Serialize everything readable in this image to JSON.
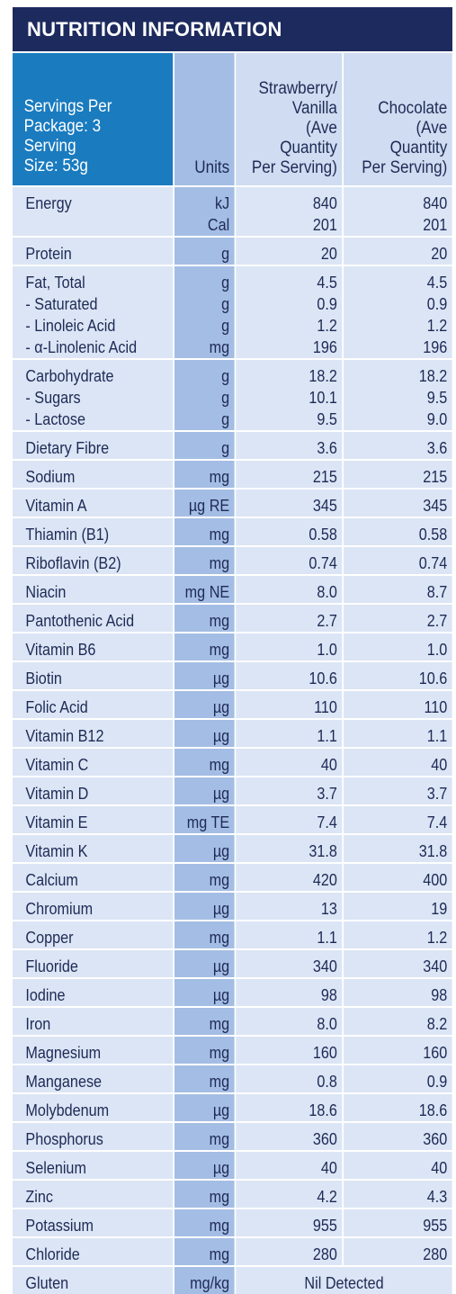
{
  "title": "NUTRITION INFORMATION",
  "header": {
    "serving_lines": [
      "Servings Per",
      "Package: 3",
      "Serving",
      "Size: 53g"
    ],
    "units_label": "Units",
    "col1_lines": [
      "Strawberry/",
      "Vanilla",
      "(Ave",
      "Quantity",
      "Per Serving)"
    ],
    "col2_lines": [
      "Chocolate",
      "(Ave",
      "Quantity",
      "Per Serving)"
    ]
  },
  "rows": [
    {
      "names": [
        "Energy"
      ],
      "units": [
        "kJ",
        "Cal"
      ],
      "v1": [
        "840",
        "201"
      ],
      "v2": [
        "840",
        "201"
      ],
      "valign": "top"
    },
    {
      "names": [
        "Protein"
      ],
      "units": [
        "g"
      ],
      "v1": [
        "20"
      ],
      "v2": [
        "20"
      ]
    },
    {
      "names": [
        "Fat, Total",
        "- Saturated",
        "- Linoleic Acid",
        "- α-Linolenic Acid"
      ],
      "units": [
        "g",
        "g",
        "g",
        "mg"
      ],
      "v1": [
        "4.5",
        "0.9",
        "1.2",
        "196"
      ],
      "v2": [
        "4.5",
        "0.9",
        "1.2",
        "196"
      ]
    },
    {
      "names": [
        "Carbohydrate",
        "- Sugars",
        "- Lactose"
      ],
      "units": [
        "g",
        "g",
        "g"
      ],
      "v1": [
        "18.2",
        "10.1",
        "9.5"
      ],
      "v2": [
        "18.2",
        "9.5",
        "9.0"
      ]
    },
    {
      "names": [
        "Dietary Fibre"
      ],
      "units": [
        "g"
      ],
      "v1": [
        "3.6"
      ],
      "v2": [
        "3.6"
      ]
    },
    {
      "names": [
        "Sodium"
      ],
      "units": [
        "mg"
      ],
      "v1": [
        "215"
      ],
      "v2": [
        "215"
      ]
    },
    {
      "names": [
        "Vitamin A"
      ],
      "units": [
        "µg RE"
      ],
      "v1": [
        "345"
      ],
      "v2": [
        "345"
      ]
    },
    {
      "names": [
        "Thiamin (B1)"
      ],
      "units": [
        "mg"
      ],
      "v1": [
        "0.58"
      ],
      "v2": [
        "0.58"
      ]
    },
    {
      "names": [
        "Riboflavin (B2)"
      ],
      "units": [
        "mg"
      ],
      "v1": [
        "0.74"
      ],
      "v2": [
        "0.74"
      ]
    },
    {
      "names": [
        "Niacin"
      ],
      "units": [
        "mg NE"
      ],
      "v1": [
        "8.0"
      ],
      "v2": [
        "8.7"
      ]
    },
    {
      "names": [
        "Pantothenic Acid"
      ],
      "units": [
        "mg"
      ],
      "v1": [
        "2.7"
      ],
      "v2": [
        "2.7"
      ]
    },
    {
      "names": [
        "Vitamin B6"
      ],
      "units": [
        "mg"
      ],
      "v1": [
        "1.0"
      ],
      "v2": [
        "1.0"
      ]
    },
    {
      "names": [
        "Biotin"
      ],
      "units": [
        "µg"
      ],
      "v1": [
        "10.6"
      ],
      "v2": [
        "10.6"
      ]
    },
    {
      "names": [
        "Folic Acid"
      ],
      "units": [
        "µg"
      ],
      "v1": [
        "110"
      ],
      "v2": [
        "110"
      ]
    },
    {
      "names": [
        "Vitamin B12"
      ],
      "units": [
        "µg"
      ],
      "v1": [
        "1.1"
      ],
      "v2": [
        "1.1"
      ]
    },
    {
      "names": [
        "Vitamin C"
      ],
      "units": [
        "mg"
      ],
      "v1": [
        "40"
      ],
      "v2": [
        "40"
      ]
    },
    {
      "names": [
        "Vitamin D"
      ],
      "units": [
        "µg"
      ],
      "v1": [
        "3.7"
      ],
      "v2": [
        "3.7"
      ]
    },
    {
      "names": [
        "Vitamin E"
      ],
      "units": [
        "mg TE"
      ],
      "v1": [
        "7.4"
      ],
      "v2": [
        "7.4"
      ]
    },
    {
      "names": [
        "Vitamin K"
      ],
      "units": [
        "µg"
      ],
      "v1": [
        "31.8"
      ],
      "v2": [
        "31.8"
      ]
    },
    {
      "names": [
        "Calcium"
      ],
      "units": [
        "mg"
      ],
      "v1": [
        "420"
      ],
      "v2": [
        "400"
      ]
    },
    {
      "names": [
        "Chromium"
      ],
      "units": [
        "µg"
      ],
      "v1": [
        "13"
      ],
      "v2": [
        "19"
      ]
    },
    {
      "names": [
        "Copper"
      ],
      "units": [
        "mg"
      ],
      "v1": [
        "1.1"
      ],
      "v2": [
        "1.2"
      ]
    },
    {
      "names": [
        "Fluoride"
      ],
      "units": [
        "µg"
      ],
      "v1": [
        "340"
      ],
      "v2": [
        "340"
      ]
    },
    {
      "names": [
        "Iodine"
      ],
      "units": [
        "µg"
      ],
      "v1": [
        "98"
      ],
      "v2": [
        "98"
      ]
    },
    {
      "names": [
        "Iron"
      ],
      "units": [
        "mg"
      ],
      "v1": [
        "8.0"
      ],
      "v2": [
        "8.2"
      ]
    },
    {
      "names": [
        "Magnesium"
      ],
      "units": [
        "mg"
      ],
      "v1": [
        "160"
      ],
      "v2": [
        "160"
      ]
    },
    {
      "names": [
        "Manganese"
      ],
      "units": [
        "mg"
      ],
      "v1": [
        "0.8"
      ],
      "v2": [
        "0.9"
      ]
    },
    {
      "names": [
        "Molybdenum"
      ],
      "units": [
        "µg"
      ],
      "v1": [
        "18.6"
      ],
      "v2": [
        "18.6"
      ]
    },
    {
      "names": [
        "Phosphorus"
      ],
      "units": [
        "mg"
      ],
      "v1": [
        "360"
      ],
      "v2": [
        "360"
      ]
    },
    {
      "names": [
        "Selenium"
      ],
      "units": [
        "µg"
      ],
      "v1": [
        "40"
      ],
      "v2": [
        "40"
      ]
    },
    {
      "names": [
        "Zinc"
      ],
      "units": [
        "mg"
      ],
      "v1": [
        "4.2"
      ],
      "v2": [
        "4.3"
      ]
    },
    {
      "names": [
        "Potassium"
      ],
      "units": [
        "mg"
      ],
      "v1": [
        "955"
      ],
      "v2": [
        "955"
      ]
    },
    {
      "names": [
        "Chloride"
      ],
      "units": [
        "mg"
      ],
      "v1": [
        "280"
      ],
      "v2": [
        "280"
      ]
    },
    {
      "names": [
        "Gluten"
      ],
      "units": [
        "mg/kg"
      ],
      "span": "Nil Detected"
    }
  ],
  "colors": {
    "title_bg": "#1c2a5e",
    "serving_bg": "#1a7bbf",
    "units_bg": "#a4bde4",
    "cell_bg": "#dbe5f5",
    "text": "#1e2a55"
  }
}
